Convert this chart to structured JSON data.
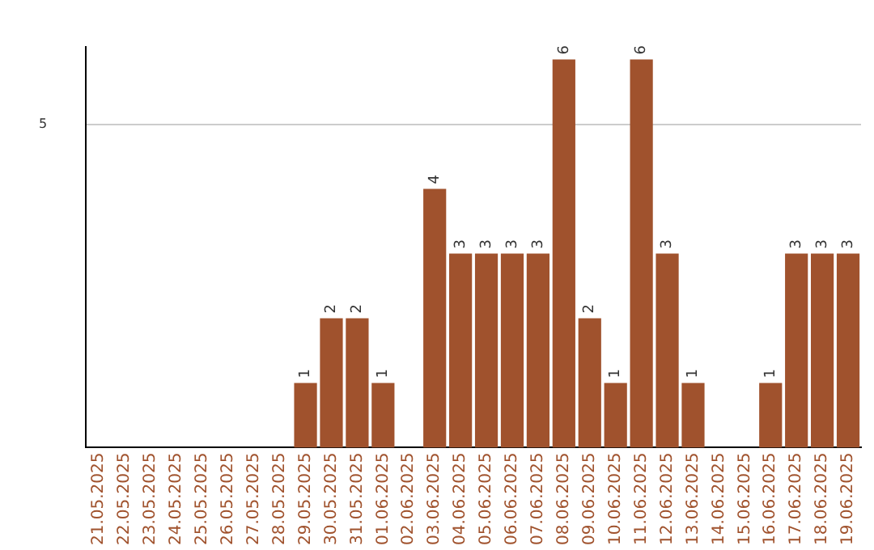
{
  "chart_data": {
    "type": "bar",
    "categories": [
      "21.05.2025",
      "22.05.2025",
      "23.05.2025",
      "24.05.2025",
      "25.05.2025",
      "26.05.2025",
      "27.05.2025",
      "28.05.2025",
      "29.05.2025",
      "30.05.2025",
      "31.05.2025",
      "01.06.2025",
      "02.06.2025",
      "03.06.2025",
      "04.06.2025",
      "05.06.2025",
      "06.06.2025",
      "07.06.2025",
      "08.06.2025",
      "09.06.2025",
      "10.06.2025",
      "11.06.2025",
      "12.06.2025",
      "13.06.2025",
      "14.06.2025",
      "15.06.2025",
      "16.06.2025",
      "17.06.2025",
      "18.06.2025",
      "19.06.2025"
    ],
    "values": [
      0,
      0,
      0,
      0,
      0,
      0,
      0,
      0,
      1,
      2,
      2,
      1,
      0,
      4,
      3,
      3,
      3,
      3,
      6,
      2,
      1,
      6,
      3,
      1,
      0,
      0,
      1,
      3,
      3,
      3
    ],
    "value_labels": [
      null,
      null,
      null,
      null,
      null,
      null,
      null,
      null,
      "1",
      "2",
      "2",
      "1",
      null,
      "4",
      "3",
      "3",
      "3",
      "3",
      "6",
      "2",
      "1",
      "6",
      "3",
      "1",
      null,
      null,
      "1",
      "3",
      "3",
      "3"
    ],
    "color": "#a0522d",
    "ylim": [
      0,
      6.2
    ],
    "yticks": [
      5
    ],
    "grid": "y",
    "legend": false
  }
}
